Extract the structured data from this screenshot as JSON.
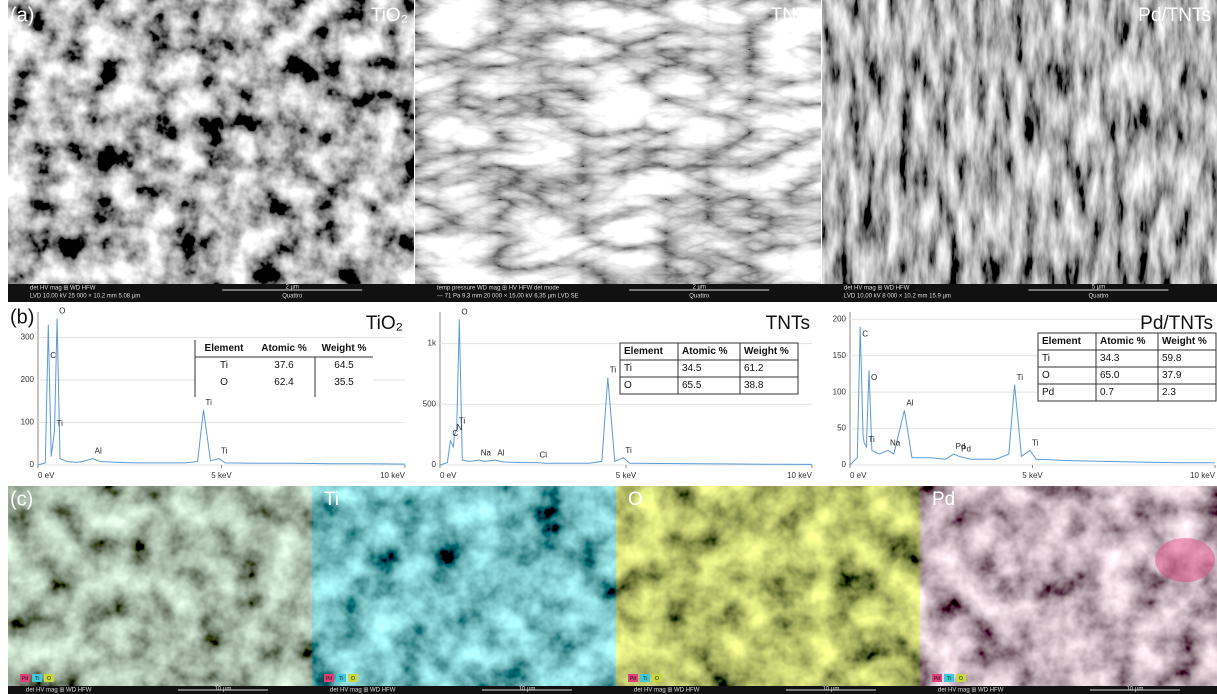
{
  "panels": {
    "a": {
      "label": "(a)",
      "images": [
        {
          "title": "TiO₂",
          "databar": {
            "labels": "det  HV  mag ⊞ WD  HFW",
            "values": "LVD 10.00 kV 25 000 × 10.2 mm 5.08 µm",
            "scale": "2 µm",
            "footer": "Quattro"
          }
        },
        {
          "title": "TNTs",
          "databar": {
            "labels": "temp pressure WD  mag ⊞ HV  HFW  det mode",
            "values": "--- 71 Pa 9.3 mm 20 000 × 15.00 kV 6.35 µm LVD SE",
            "scale": "2 µm",
            "footer": "Quattro"
          }
        },
        {
          "title": "Pd/TNTs",
          "databar": {
            "labels": "det  HV  mag ⊞ WD  HFW",
            "values": "LVD 10.00 kV 8 000 × 10.2 mm 15.9 µm",
            "scale": "5 µm",
            "footer": "Quattro"
          }
        }
      ]
    },
    "b": {
      "label": "(b)"
    },
    "c": {
      "label": "(c)",
      "maps": [
        {
          "title": null,
          "chips": [
            "Pd",
            "Ti",
            "O"
          ],
          "databar": "det  HV  mag ⊞ WD  HFW",
          "scale": "10 µm"
        },
        {
          "title": "Ti",
          "chips": [
            "Pd",
            "Ti",
            "O"
          ],
          "databar": "det  HV  mag ⊞ WD  HFW",
          "scale": "10 µm"
        },
        {
          "title": "O",
          "chips": [
            "Pd",
            "Ti",
            "O"
          ],
          "databar": "det  HV  mag ⊞ WD  HFW",
          "scale": "10 µm"
        },
        {
          "title": "Pd",
          "chips": [
            "Pd",
            "Ti",
            "O"
          ],
          "databar": "det  HV  mag ⊞ WD  HFW",
          "scale": "10 µm"
        }
      ]
    }
  },
  "chart_data": [
    {
      "type": "line",
      "title": "TiO₂",
      "x": [
        0,
        0.2,
        0.28,
        0.36,
        0.39,
        0.45,
        0.52,
        0.6,
        0.8,
        1.04,
        1.2,
        1.49,
        1.7,
        2.2,
        2.62,
        2.84,
        2.99,
        3.3,
        4.0,
        4.35,
        4.51,
        4.7,
        4.93,
        5.1,
        6,
        7,
        8,
        9,
        10
      ],
      "series": [
        {
          "name": "TiO₂",
          "color": "#5b9bd5",
          "values": [
            0,
            5,
            330,
            20,
            40,
            80,
            345,
            15,
            8,
            6,
            8,
            15,
            8,
            6,
            5,
            5,
            5,
            5,
            5,
            8,
            130,
            10,
            15,
            5,
            4,
            4,
            3,
            3,
            2
          ]
        }
      ],
      "xlim": [
        0,
        10
      ],
      "xticks": [
        {
          "value": 0,
          "label": "0 eV"
        },
        {
          "value": 5,
          "label": "5 keV"
        },
        {
          "value": 10,
          "label": "10 keV"
        }
      ],
      "ylim": [
        0,
        360
      ],
      "yticks": [
        0,
        100,
        200,
        300
      ],
      "grid": true,
      "annotations": [
        {
          "text": "C",
          "x": 0.28,
          "y": 240
        },
        {
          "text": "O",
          "x": 0.52,
          "y": 345
        },
        {
          "text": "Ti",
          "x": 0.45,
          "y": 80
        },
        {
          "text": "Al",
          "x": 1.49,
          "y": 15
        },
        {
          "text": "Ti",
          "x": 4.51,
          "y": 130
        },
        {
          "text": "Ti",
          "x": 4.93,
          "y": 15
        }
      ],
      "table": {
        "header": [
          "Element",
          "Atomic %",
          "Weight %"
        ],
        "rows": [
          [
            "Ti",
            "37.6",
            "64.5"
          ],
          [
            "O",
            "62.4",
            "35.5"
          ]
        ]
      }
    },
    {
      "type": "line",
      "title": "TNTs",
      "x": [
        0,
        0.2,
        0.28,
        0.36,
        0.39,
        0.45,
        0.52,
        0.6,
        0.8,
        1.04,
        1.2,
        1.49,
        1.7,
        2.2,
        2.62,
        2.84,
        2.99,
        3.3,
        4.0,
        4.35,
        4.51,
        4.7,
        4.93,
        5.1,
        6,
        7,
        8,
        9,
        10
      ],
      "series": [
        {
          "name": "TNTs",
          "color": "#5b9bd5",
          "values": [
            0,
            20,
            200,
            150,
            250,
            300,
            1200,
            40,
            30,
            40,
            30,
            40,
            25,
            20,
            20,
            15,
            15,
            15,
            15,
            30,
            720,
            30,
            60,
            15,
            12,
            10,
            8,
            6,
            5
          ]
        }
      ],
      "xlim": [
        0,
        10
      ],
      "xticks": [
        {
          "value": 0,
          "label": "0 eV"
        },
        {
          "value": 5,
          "label": "5 keV"
        },
        {
          "value": 10,
          "label": "10 keV"
        }
      ],
      "ylim": [
        0,
        1260
      ],
      "yticks": [
        0,
        500,
        {
          "value": 1000,
          "label": "1k"
        }
      ],
      "grid": true,
      "annotations": [
        {
          "text": "C",
          "x": 0.28,
          "y": 200
        },
        {
          "text": "N",
          "x": 0.39,
          "y": 250
        },
        {
          "text": "Ti",
          "x": 0.45,
          "y": 300
        },
        {
          "text": "O",
          "x": 0.52,
          "y": 1200
        },
        {
          "text": "Na",
          "x": 1.04,
          "y": 40
        },
        {
          "text": "Al",
          "x": 1.49,
          "y": 40
        },
        {
          "text": "Cl",
          "x": 2.62,
          "y": 20
        },
        {
          "text": "Ti",
          "x": 4.51,
          "y": 720
        },
        {
          "text": "Ti",
          "x": 4.93,
          "y": 60
        }
      ],
      "table": {
        "header": [
          "Element",
          "Atomic %",
          "Weight %"
        ],
        "rows": [
          [
            "Ti",
            "34.5",
            "61.2"
          ],
          [
            "O",
            "65.5",
            "38.8"
          ]
        ]
      }
    },
    {
      "type": "line",
      "title": "Pd/TNTs",
      "x": [
        0,
        0.2,
        0.28,
        0.36,
        0.39,
        0.45,
        0.52,
        0.6,
        0.8,
        1.04,
        1.2,
        1.49,
        1.7,
        2.2,
        2.62,
        2.84,
        2.99,
        3.3,
        4.0,
        4.35,
        4.51,
        4.7,
        4.93,
        5.1,
        6,
        7,
        8,
        9,
        10
      ],
      "series": [
        {
          "name": "Pd/TNTs",
          "color": "#5b9bd5",
          "values": [
            0,
            10,
            190,
            40,
            30,
            25,
            130,
            20,
            15,
            20,
            15,
            75,
            10,
            10,
            8,
            15,
            12,
            8,
            8,
            15,
            110,
            12,
            20,
            8,
            6,
            5,
            4,
            3,
            3
          ]
        }
      ],
      "xlim": [
        0,
        10
      ],
      "xticks": [
        {
          "value": 0,
          "label": "0 eV"
        },
        {
          "value": 5,
          "label": "5 keV"
        },
        {
          "value": 10,
          "label": "10 keV"
        }
      ],
      "ylim": [
        0,
        210
      ],
      "yticks": [
        0,
        50,
        100,
        150,
        200
      ],
      "grid": true,
      "annotations": [
        {
          "text": "C",
          "x": 0.28,
          "y": 170
        },
        {
          "text": "O",
          "x": 0.52,
          "y": 110
        },
        {
          "text": "Ti",
          "x": 0.45,
          "y": 25
        },
        {
          "text": "Na",
          "x": 1.04,
          "y": 20
        },
        {
          "text": "Al",
          "x": 1.49,
          "y": 75
        },
        {
          "text": "Pd",
          "x": 2.84,
          "y": 15
        },
        {
          "text": "Pd",
          "x": 2.99,
          "y": 12
        },
        {
          "text": "Ti",
          "x": 4.51,
          "y": 110
        },
        {
          "text": "Ti",
          "x": 4.93,
          "y": 20
        }
      ],
      "table": {
        "header": [
          "Element",
          "Atomic %",
          "Weight %"
        ],
        "rows": [
          [
            "Ti",
            "34.3",
            "59.8"
          ],
          [
            "O",
            "65.0",
            "37.9"
          ],
          [
            "Pd",
            "0.7",
            "2.3"
          ]
        ]
      }
    }
  ]
}
